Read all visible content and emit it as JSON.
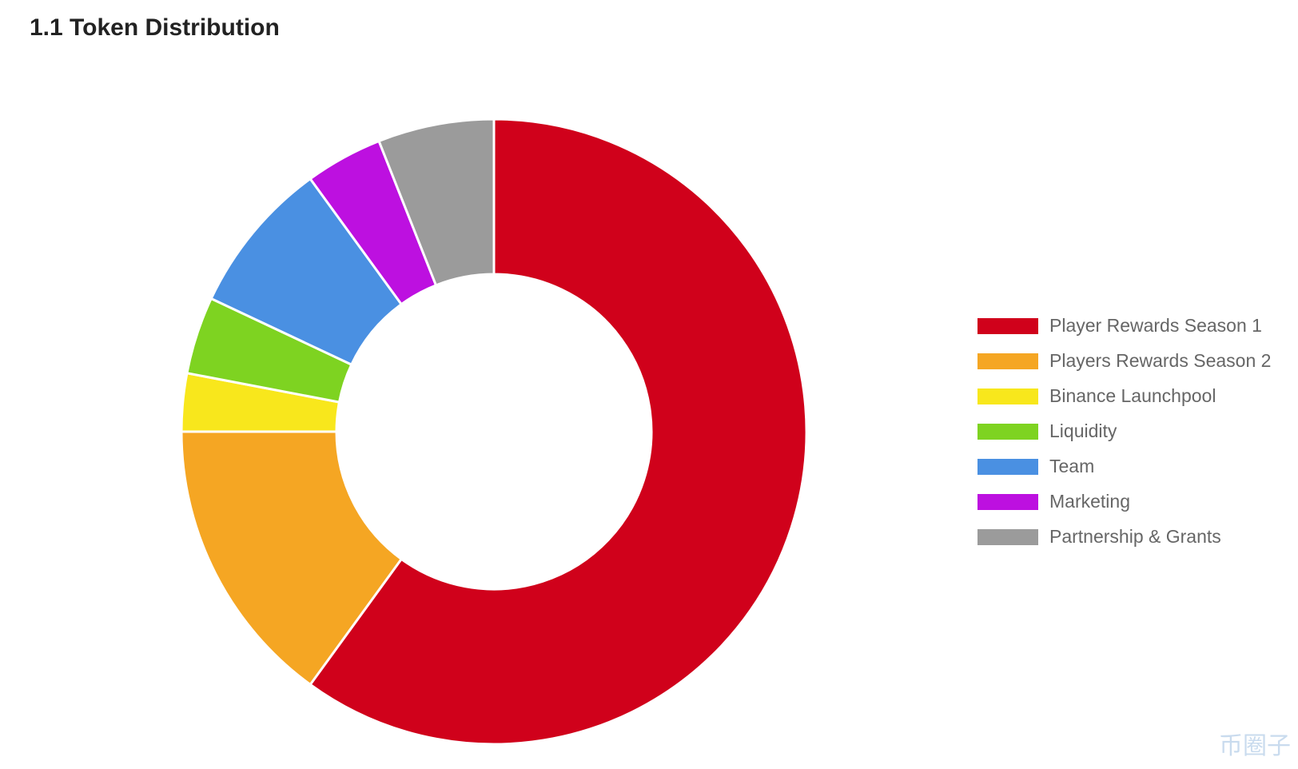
{
  "chart_data": {
    "type": "donut",
    "title": "1.1 Token Distribution",
    "categories": [
      "Player Rewards Season 1",
      "Players Rewards Season 2",
      "Binance Launchpool",
      "Liquidity",
      "Team",
      "Marketing",
      "Partnership & Grants"
    ],
    "values": [
      60,
      15,
      3,
      4,
      8,
      4,
      6
    ],
    "colors": [
      "#d0011b",
      "#f5a623",
      "#f8e71c",
      "#7ed321",
      "#4a90e2",
      "#bd10e0",
      "#9b9b9b"
    ],
    "legend": "right"
  },
  "watermark": "币圈子"
}
